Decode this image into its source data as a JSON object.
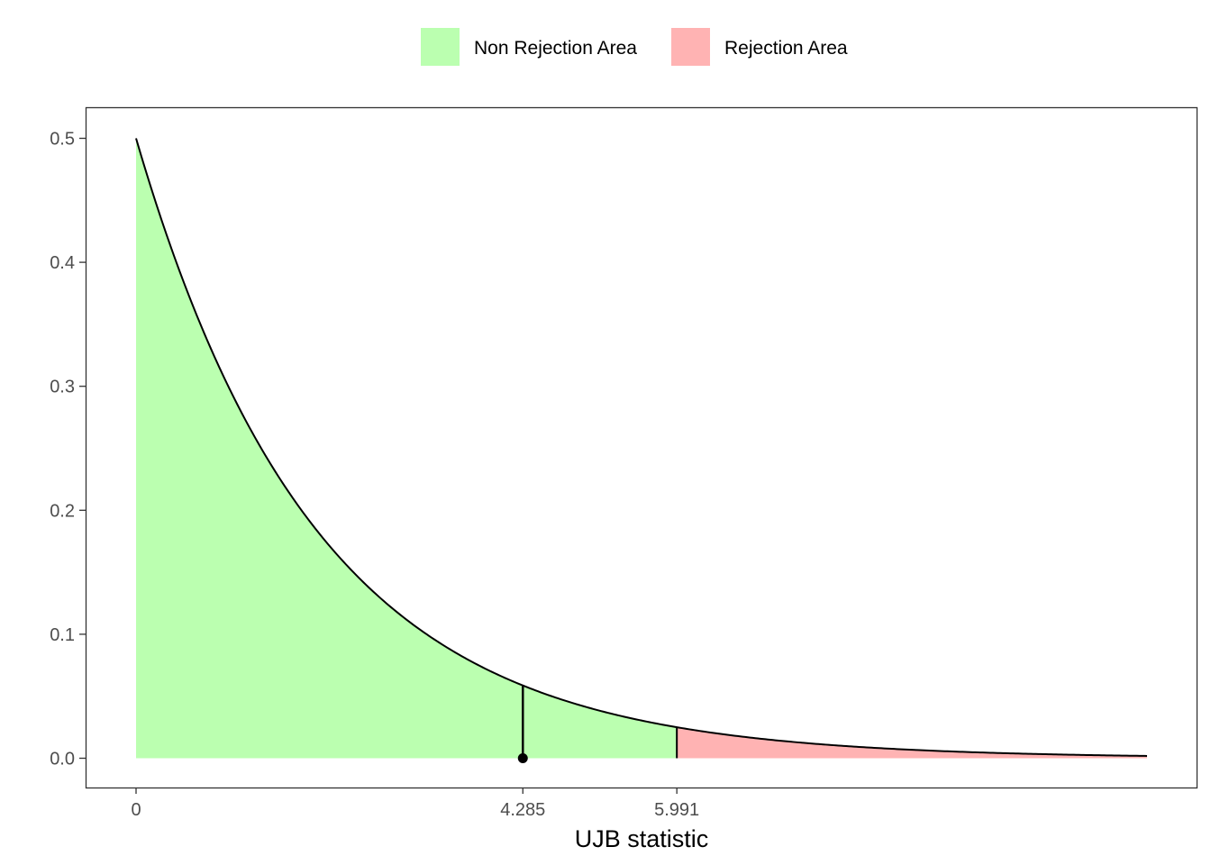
{
  "chart_data": {
    "type": "area",
    "distribution": "chi-squared, df = 2",
    "xlabel": "UJB statistic",
    "ylabel": "",
    "xlim": [
      0,
      11.2
    ],
    "ylim": [
      -0.025,
      0.525
    ],
    "x_ticks": [
      0,
      4.285,
      5.991
    ],
    "x_tick_labels": [
      "0",
      "4.285",
      "5.991"
    ],
    "y_ticks": [
      0.0,
      0.1,
      0.2,
      0.3,
      0.4,
      0.5
    ],
    "y_tick_labels": [
      "0.0",
      "0.1",
      "0.2",
      "0.3",
      "0.4",
      "0.5"
    ],
    "x_start": 0,
    "x_end": 11.2,
    "observed_statistic": 4.285,
    "critical_value": 5.991,
    "legend": {
      "position": "top",
      "entries": [
        {
          "label": "Non Rejection Area",
          "color": "#bbffb0"
        },
        {
          "label": "Rejection Area",
          "color": "#ffb3b3"
        }
      ]
    },
    "colors": {
      "non_rejection": "#bbffb0",
      "rejection": "#ffb3b3",
      "curve": "#000000"
    },
    "grid": false
  }
}
